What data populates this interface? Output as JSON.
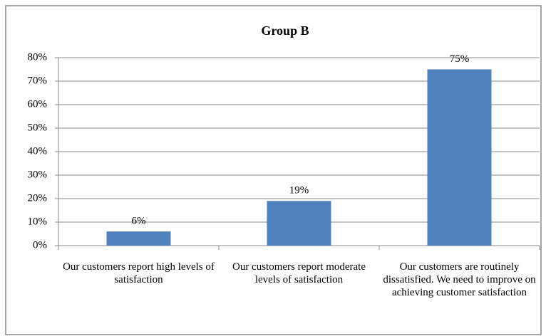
{
  "chart_data": {
    "type": "bar",
    "title": "Group B",
    "categories": [
      "Our customers report high levels of satisfaction",
      "Our customers report moderate levels of satisfaction",
      "Our customers are routinely dissatisfied. We need to improve on achieving customer satisfaction"
    ],
    "values": [
      6,
      19,
      75
    ],
    "value_labels": [
      "6%",
      "19%",
      "75%"
    ],
    "color": "#4f81bd",
    "ylim": [
      0,
      80
    ],
    "yticks": [
      {
        "value": 0,
        "label": "0%"
      },
      {
        "value": 10,
        "label": "10%"
      },
      {
        "value": 20,
        "label": "20%"
      },
      {
        "value": 30,
        "label": "30%"
      },
      {
        "value": 40,
        "label": "40%"
      },
      {
        "value": 50,
        "label": "50%"
      },
      {
        "value": 60,
        "label": "60%"
      },
      {
        "value": 70,
        "label": "70%"
      },
      {
        "value": 80,
        "label": "80%"
      }
    ],
    "grid": true
  }
}
